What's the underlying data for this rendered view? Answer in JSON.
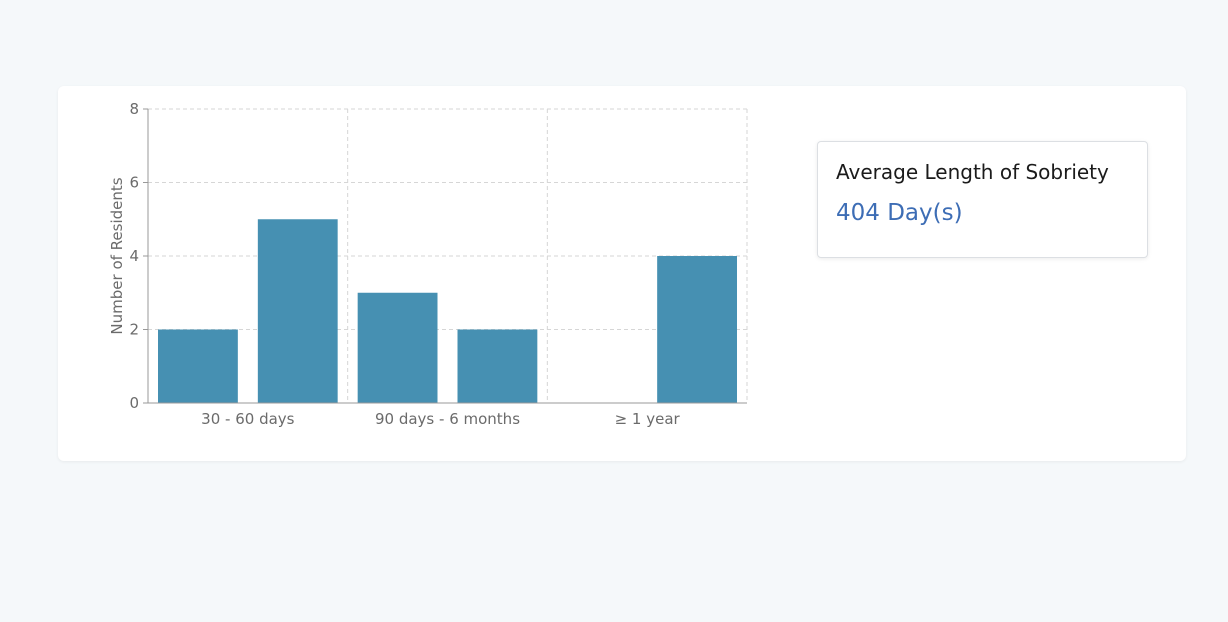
{
  "colors": {
    "bar": "#4690b2",
    "grid": "#d6d6d6",
    "axis": "#999999",
    "stat_value": "#3d6db5"
  },
  "chart_data": {
    "type": "bar",
    "categories": [
      "",
      "30 - 60 days",
      "",
      "90 days - 6 months",
      "",
      "≥ 1 year"
    ],
    "values": [
      2,
      5,
      3,
      2,
      0,
      4
    ],
    "title": "",
    "xlabel": "",
    "ylabel": "Number of Residents",
    "ylim": [
      0,
      8
    ],
    "yticks": [
      0,
      2,
      4,
      6,
      8
    ],
    "grid": true
  },
  "stat": {
    "title": "Average Length of Sobriety",
    "value": "404 Day(s)"
  }
}
